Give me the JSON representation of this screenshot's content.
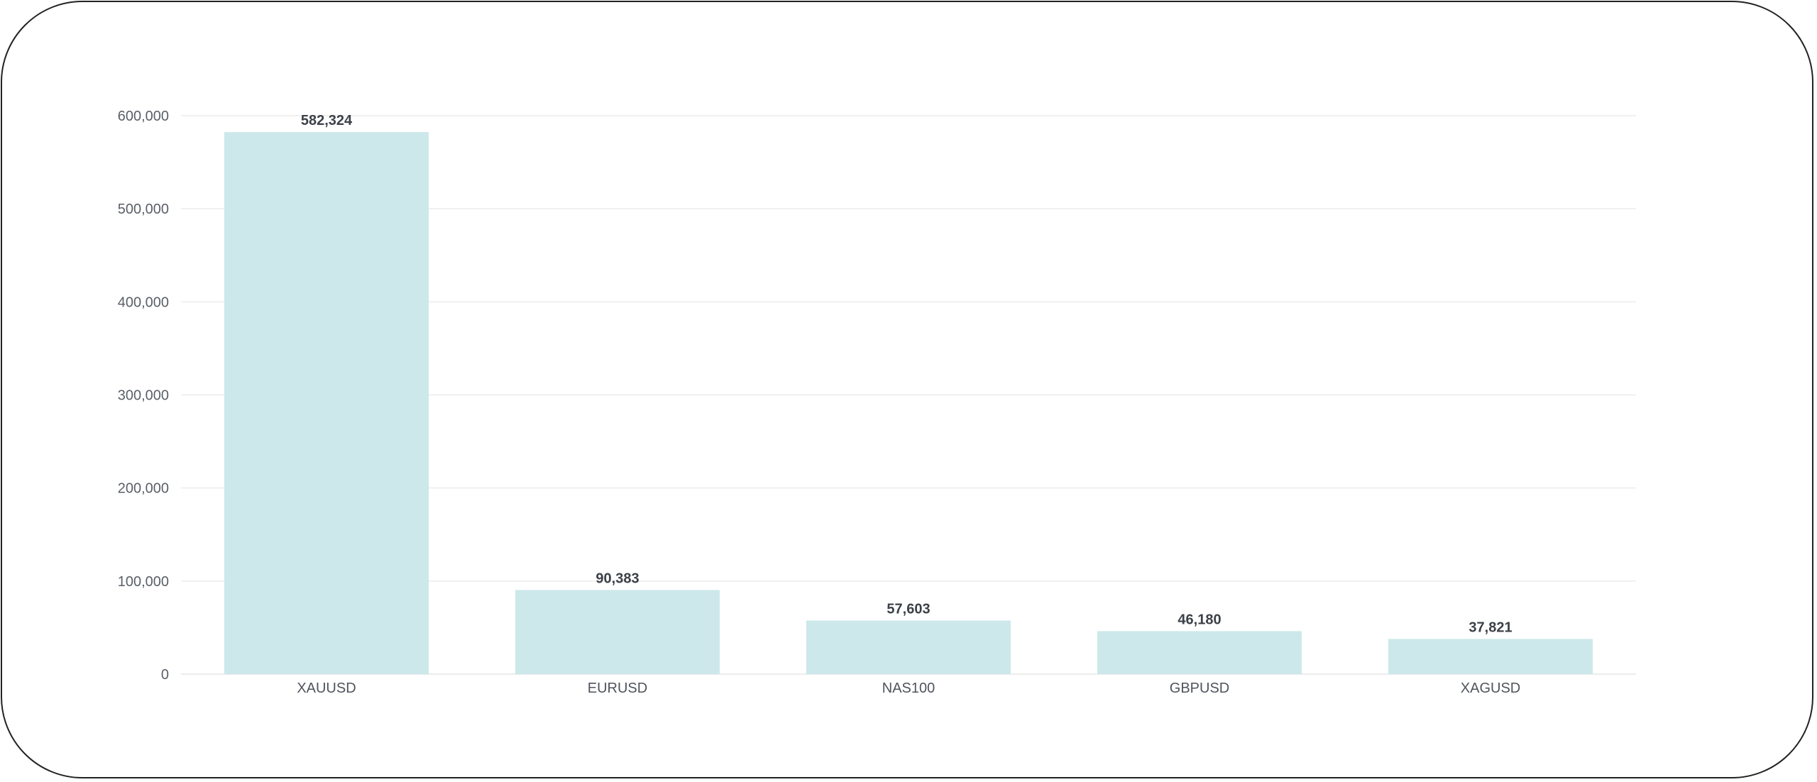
{
  "chart_data": {
    "type": "bar",
    "categories": [
      "XAUUSD",
      "EURUSD",
      "NAS100",
      "GBPUSD",
      "XAGUSD"
    ],
    "values": [
      582324,
      90383,
      57603,
      46180,
      37821
    ],
    "data_labels": [
      "582,324",
      "90,383",
      "57,603",
      "46,180",
      "37,821"
    ],
    "y_ticks": [
      0,
      100000,
      200000,
      300000,
      400000,
      500000,
      600000
    ],
    "y_tick_labels": [
      "0",
      "100,000",
      "200,000",
      "300,000",
      "400,000",
      "500,000",
      "600,000"
    ],
    "ylim": [
      0,
      600000
    ],
    "grid": true,
    "legend": false,
    "title": "",
    "xlabel": "",
    "ylabel": "",
    "bar_color": "#cce8ea",
    "grid_color": "#ececec",
    "text_color": "#5a5f66"
  }
}
